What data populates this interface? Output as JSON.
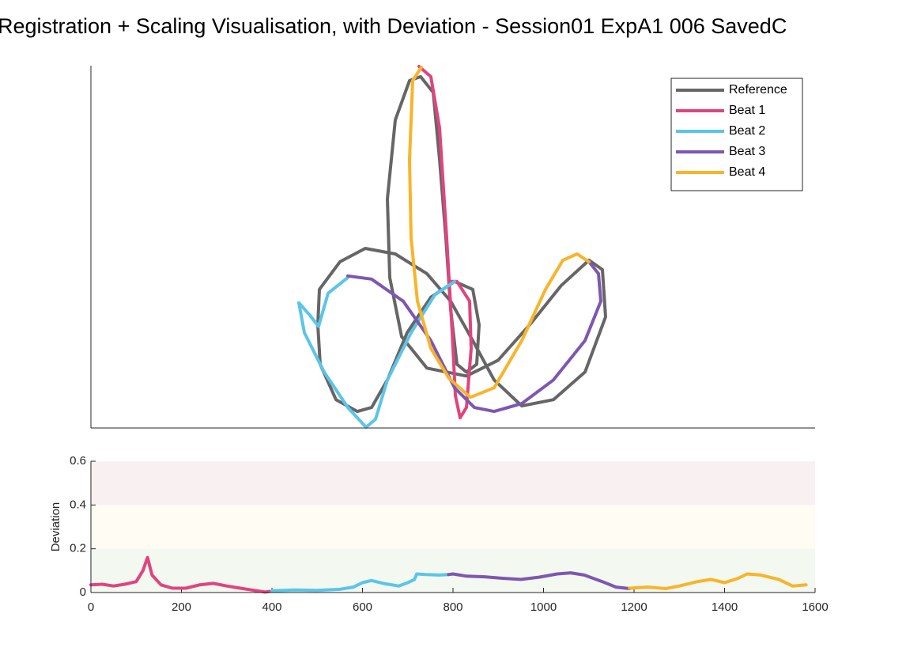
{
  "chart_data": [
    {
      "type": "line",
      "title": "Registration + Scaling Visualisation, with Deviation - Session01 ExpA1 006 SavedC",
      "xlim": [
        0,
        916
      ],
      "ylim": [
        0,
        460
      ],
      "legend": "northeast",
      "line_width": 4,
      "series": [
        {
          "name": "Reference",
          "color": "#666666",
          "x": [
            287,
            289,
            315,
            347,
            385,
            425,
            455,
            483,
            510,
            545,
            585,
            625,
            651,
            647,
            630,
            595,
            555,
            515,
            475,
            425,
            393,
            378,
            375,
            385,
            403,
            417,
            433,
            441,
            449,
            455,
            463,
            475,
            488,
            491,
            483,
            460,
            430,
            400,
            375,
            355,
            337,
            310,
            290,
            287
          ],
          "values": [
            131,
            176,
            211,
            228,
            221,
            196,
            161,
            111,
            61,
            28,
            36,
            71,
            141,
            201,
            213,
            181,
            131,
            86,
            66,
            76,
            116,
            191,
            291,
            391,
            441,
            446,
            426,
            341,
            241,
            151,
            81,
            71,
            81,
            131,
            176,
            186,
            166,
            121,
            61,
            26,
            21,
            36,
            81,
            131
          ]
        },
        {
          "name": "Beat 1",
          "color": "#e0447e",
          "x": [
            415,
            430,
            441,
            450,
            457,
            461,
            467,
            475,
            481,
            479,
            463,
            455
          ],
          "values": [
            459,
            446,
            381,
            241,
            121,
            41,
            13,
            26,
            101,
            161,
            186,
            186
          ]
        },
        {
          "name": "Beat 2",
          "color": "#5bc5e8",
          "x": [
            460,
            435,
            405,
            375,
            360,
            348,
            325,
            295,
            270,
            263,
            277,
            288,
            300,
            325
          ],
          "values": [
            186,
            169,
            121,
            61,
            11,
            1,
            26,
            71,
            121,
            159,
            143,
            129,
            171,
            191
          ]
        },
        {
          "name": "Beat 3",
          "color": "#7e57b0",
          "x": [
            325,
            355,
            395,
            430,
            460,
            485,
            510,
            545,
            585,
            625,
            645,
            642,
            630
          ],
          "values": [
            193,
            189,
            161,
            111,
            51,
            26,
            21,
            31,
            61,
            111,
            161,
            196,
            211
          ]
        },
        {
          "name": "Beat 4",
          "color": "#f8b42a",
          "x": [
            630,
            615,
            597,
            575,
            545,
            510,
            480,
            453,
            430,
            413,
            405,
            403,
            407,
            418
          ],
          "values": [
            211,
            221,
            213,
            176,
            111,
            51,
            39,
            63,
            101,
            161,
            241,
            341,
            441,
            458
          ]
        }
      ]
    },
    {
      "type": "line",
      "ylabel": "Deviation",
      "xlim": [
        0,
        1600
      ],
      "ylim": [
        0,
        0.6
      ],
      "xticks": [
        0,
        200,
        400,
        600,
        800,
        1000,
        1200,
        1400,
        1600
      ],
      "yticks": [
        0,
        0.2,
        0.4,
        0.6
      ],
      "line_width": 4,
      "bands": [
        {
          "from": 0,
          "to": 0.2,
          "color": "#f3f8f0"
        },
        {
          "from": 0.2,
          "to": 0.4,
          "color": "#fefcf3"
        },
        {
          "from": 0.4,
          "to": 0.6,
          "color": "#f9f0f2"
        }
      ],
      "series": [
        {
          "color": "#e0447e",
          "x": [
            0,
            25,
            50,
            75,
            100,
            115,
            125,
            135,
            155,
            180,
            210,
            240,
            270,
            300,
            330,
            360,
            385,
            395
          ],
          "values": [
            0.035,
            0.038,
            0.03,
            0.038,
            0.05,
            0.1,
            0.16,
            0.08,
            0.035,
            0.02,
            0.02,
            0.035,
            0.042,
            0.03,
            0.02,
            0.01,
            0.002,
            0.005
          ]
        },
        {
          "color": "#5bc5e8",
          "x": [
            400,
            450,
            500,
            550,
            580,
            600,
            620,
            650,
            680,
            700,
            715,
            720,
            740,
            770,
            790
          ],
          "values": [
            0.008,
            0.012,
            0.01,
            0.015,
            0.025,
            0.045,
            0.055,
            0.04,
            0.03,
            0.045,
            0.06,
            0.085,
            0.082,
            0.08,
            0.082
          ]
        },
        {
          "color": "#7e57b0",
          "x": [
            790,
            800,
            830,
            870,
            910,
            950,
            990,
            1030,
            1060,
            1090,
            1130,
            1160,
            1190
          ],
          "values": [
            0.082,
            0.085,
            0.075,
            0.072,
            0.065,
            0.06,
            0.07,
            0.085,
            0.09,
            0.08,
            0.05,
            0.025,
            0.018
          ]
        },
        {
          "color": "#f8b42a",
          "x": [
            1190,
            1230,
            1270,
            1300,
            1340,
            1370,
            1400,
            1430,
            1450,
            1480,
            1520,
            1550,
            1580
          ],
          "values": [
            0.02,
            0.025,
            0.018,
            0.03,
            0.05,
            0.06,
            0.045,
            0.065,
            0.085,
            0.08,
            0.06,
            0.03,
            0.035
          ]
        }
      ]
    }
  ]
}
